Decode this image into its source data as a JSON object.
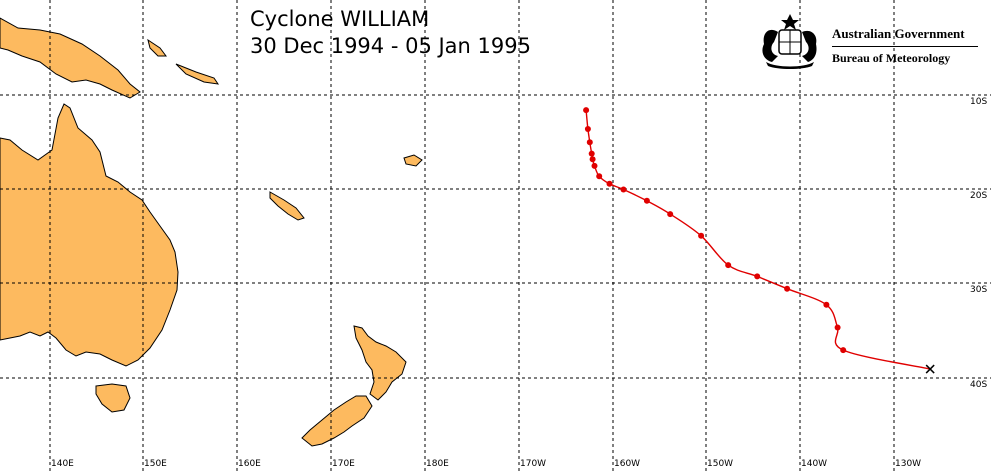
{
  "title": {
    "line1": "Cyclone WILLIAM",
    "line2": "30 Dec 1994 - 05 Jan 1995"
  },
  "agency": {
    "government": "Australian Government",
    "bureau": "Bureau of Meteorology",
    "emblem_icon": "coat-of-arms-icon"
  },
  "latitude_labels": [
    "10S",
    "20S",
    "30S",
    "40S"
  ],
  "longitude_labels": [
    "140E",
    "150E",
    "160E",
    "170E",
    "180E",
    "170W",
    "160W",
    "150W",
    "140W",
    "130W"
  ],
  "colors": {
    "land": "#FDBA5F",
    "coast": "#000000",
    "grid": "#000000",
    "track": "#E00000",
    "track_points": "#E00000",
    "end_marker": "#000000"
  },
  "track": {
    "units": "degrees",
    "points": [
      {
        "lat": -11.6,
        "lon": -163.2
      },
      {
        "lat": -13.6,
        "lon": -163.0
      },
      {
        "lat": -15.0,
        "lon": -162.8
      },
      {
        "lat": -16.2,
        "lon": -162.6
      },
      {
        "lat": -16.8,
        "lon": -162.5
      },
      {
        "lat": -17.5,
        "lon": -162.3
      },
      {
        "lat": -18.6,
        "lon": -161.8
      },
      {
        "lat": -19.4,
        "lon": -160.7
      },
      {
        "lat": -20.0,
        "lon": -159.2
      },
      {
        "lat": -21.2,
        "lon": -156.7
      },
      {
        "lat": -22.6,
        "lon": -154.2
      },
      {
        "lat": -24.9,
        "lon": -150.9
      },
      {
        "lat": -28.0,
        "lon": -148.0
      },
      {
        "lat": -29.2,
        "lon": -144.9
      },
      {
        "lat": -30.5,
        "lon": -141.7
      },
      {
        "lat": -32.2,
        "lon": -137.5
      },
      {
        "lat": -34.6,
        "lon": -136.3
      },
      {
        "lat": -37.0,
        "lon": -135.7
      }
    ],
    "end_point": {
      "lat": -39.0,
      "lon": -126.4
    }
  }
}
